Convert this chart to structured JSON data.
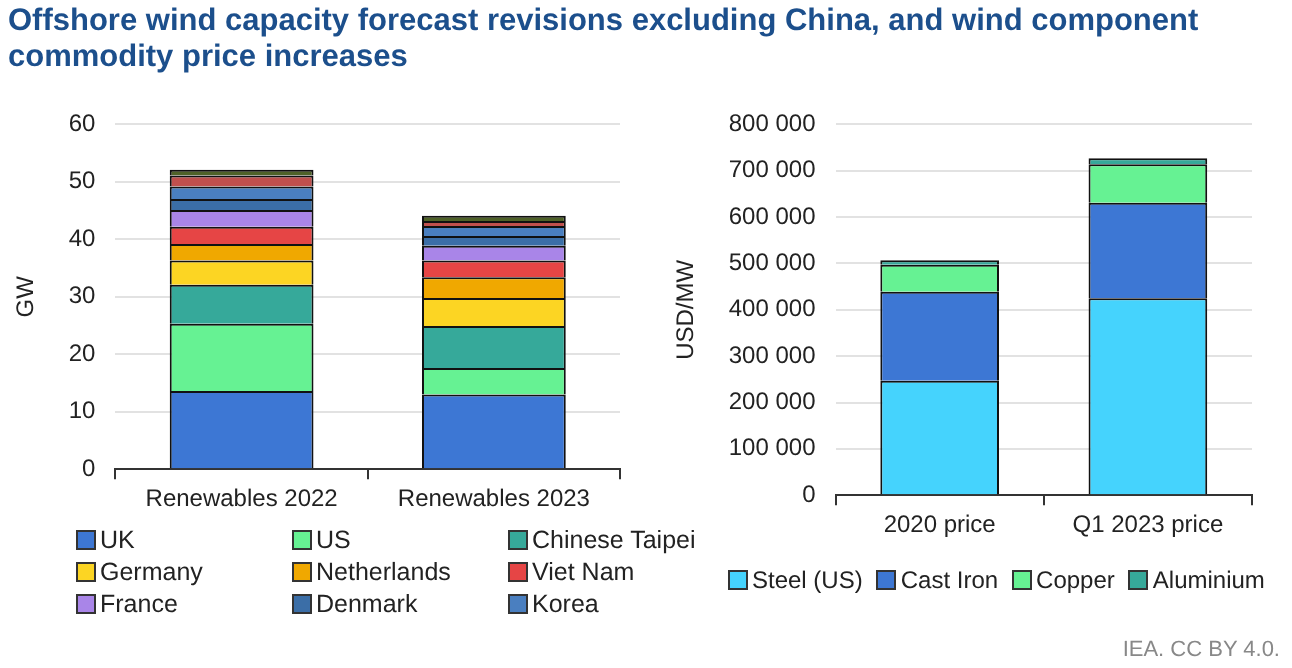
{
  "chart_data": [
    {
      "type": "bar",
      "title": "Offshore wind capacity forecast revisions excluding China, and wind component commodity price increases",
      "ylabel": "GW",
      "categories": [
        "Renewables 2022",
        "Renewables 2023"
      ],
      "stacked": true,
      "ylim": [
        0,
        60
      ],
      "yticks": [
        0,
        10,
        20,
        30,
        40,
        50,
        60
      ],
      "grid": "y",
      "legend": "bottom",
      "series": [
        {
          "name": "UK",
          "color": "#3d77d4",
          "values": [
            13.6,
            13.0
          ]
        },
        {
          "name": "US",
          "color": "#66f293",
          "values": [
            11.7,
            4.6
          ]
        },
        {
          "name": "Chinese Taipei",
          "color": "#36a99a",
          "values": [
            6.8,
            7.3
          ]
        },
        {
          "name": "Germany",
          "color": "#fcd523",
          "values": [
            4.2,
            4.9
          ]
        },
        {
          "name": "Netherlands",
          "color": "#f0a800",
          "values": [
            2.9,
            3.6
          ]
        },
        {
          "name": "Viet Nam",
          "color": "#e64545",
          "values": [
            3.0,
            2.9
          ]
        },
        {
          "name": "France",
          "color": "#a985e8",
          "values": [
            2.9,
            2.6
          ]
        },
        {
          "name": "Denmark",
          "color": "#3b6ea7",
          "values": [
            1.9,
            1.7
          ]
        },
        {
          "name": "Korea",
          "color": "#4a7fc0",
          "values": [
            2.2,
            1.7
          ]
        },
        {
          "color": "#c0504d",
          "values": [
            1.9,
            0.9
          ]
        },
        {
          "color": "#4f6228",
          "values": [
            1.0,
            0.9
          ]
        }
      ]
    },
    {
      "type": "bar",
      "ylabel": "USD/MW",
      "categories": [
        "2020 price",
        "Q1 2023 price"
      ],
      "stacked": true,
      "ylim": [
        0,
        800000
      ],
      "yticks": [
        {
          "value": 0,
          "label": "0"
        },
        {
          "value": 100000,
          "label": "100 000"
        },
        {
          "value": 200000,
          "label": "200 000"
        },
        {
          "value": 300000,
          "label": "300 000"
        },
        {
          "value": 400000,
          "label": "400 000"
        },
        {
          "value": 500000,
          "label": "500 000"
        },
        {
          "value": 600000,
          "label": "600 000"
        },
        {
          "value": 700000,
          "label": "700 000"
        },
        {
          "value": 800000,
          "label": "800 000"
        }
      ],
      "grid": "y",
      "legend": "bottom",
      "annotations": [
        "IEA. CC BY 4.0."
      ],
      "series": [
        {
          "name": "Steel (US)",
          "color": "#45d3fd",
          "values": [
            247000,
            425000
          ]
        },
        {
          "name": "Cast Iron",
          "color": "#3d77d4",
          "values": [
            192000,
            206000
          ]
        },
        {
          "name": "Copper",
          "color": "#66f293",
          "values": [
            58000,
            83000
          ]
        },
        {
          "name": "Aluminium",
          "color": "#36a99a",
          "values": [
            10000,
            13000
          ]
        }
      ]
    }
  ]
}
